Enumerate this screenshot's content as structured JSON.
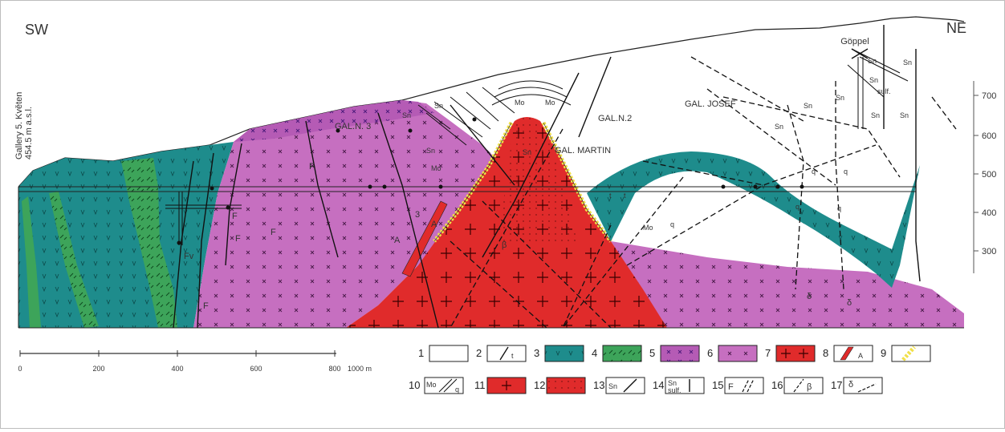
{
  "orientation": {
    "left": "SW",
    "right": "NE"
  },
  "gallery_label": {
    "line1": "Gallery 5. Květen",
    "line2": "454.5 m a.s.l."
  },
  "place_label": "Göppel",
  "galleries": {
    "n3": "GAL.N. 3",
    "n2": "GAL.N.2",
    "josef": "GAL. JOSEF",
    "martin": "GAL. MARTIN"
  },
  "elevation_ticks": [
    "700",
    "600",
    "500",
    "400",
    "300"
  ],
  "scale_bar": {
    "ticks": [
      "0",
      "200",
      "400",
      "600",
      "800",
      "1000 m"
    ]
  },
  "mineral_labels": {
    "sn": "Sn",
    "mo": "Mo",
    "q": "q",
    "sulf": "sulf.",
    "f": "F",
    "fv": "Fv",
    "a": "A",
    "delta": "δ",
    "beta": "β",
    "three": "3",
    "t": "t"
  },
  "legend": [
    {
      "num": "1",
      "symbol": "blank",
      "color": "#ffffff"
    },
    {
      "num": "2",
      "symbol": "fault-t",
      "text": "t"
    },
    {
      "num": "3",
      "symbol": "v-pattern",
      "color": "#1e8c8c"
    },
    {
      "num": "4",
      "symbol": "dash-pattern",
      "color": "#3da45a"
    },
    {
      "num": "5",
      "symbol": "x-pattern-dark",
      "color": "#b55bb5"
    },
    {
      "num": "6",
      "symbol": "x-pattern",
      "color": "#c66fc0"
    },
    {
      "num": "7",
      "symbol": "plus-pattern",
      "color": "#e02b2b"
    },
    {
      "num": "8",
      "symbol": "dyke-A",
      "text": "A",
      "color": "#e02b2b"
    },
    {
      "num": "9",
      "symbol": "yellow-band",
      "color": "#f1e04a"
    },
    {
      "num": "10",
      "symbol": "Mo-q",
      "text": "Mo",
      "text2": "q"
    },
    {
      "num": "11",
      "symbol": "plus-red",
      "color": "#e02b2b"
    },
    {
      "num": "12",
      "symbol": "dot-red",
      "color": "#e02b2b"
    },
    {
      "num": "13",
      "symbol": "Sn-vein",
      "text": "Sn"
    },
    {
      "num": "14",
      "symbol": "Sn-sulf",
      "text": "Sn",
      "text2": "sulf."
    },
    {
      "num": "15",
      "symbol": "F-double",
      "text": "F"
    },
    {
      "num": "16",
      "symbol": "beta",
      "text": "β"
    },
    {
      "num": "17",
      "symbol": "delta",
      "text": "δ"
    }
  ],
  "colors": {
    "teal": "#1e8c8c",
    "green": "#3da45a",
    "violet": "#c66fc0",
    "violet_dark": "#b55bb5",
    "red": "#e02b2b",
    "yellow": "#f1e04a"
  }
}
